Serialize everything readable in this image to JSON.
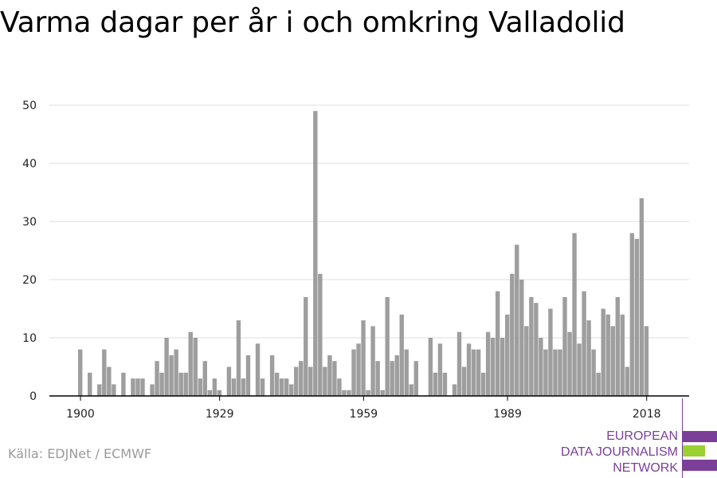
{
  "title": "Varma dagar per år i och omkring Valladolid",
  "source": "Källa: EDJNet / ECMWF",
  "logo": {
    "lines": [
      "EUROPEAN",
      "DATA JOURNALISM",
      "NETWORK"
    ],
    "colors": {
      "purple": "#7b3f98",
      "green": "#9bd033"
    }
  },
  "colors": {
    "bar": "#9e9e9e",
    "grid": "#dddddd",
    "axis": "#000000"
  },
  "chart_data": {
    "type": "bar",
    "title": "Varma dagar per år i och omkring Valladolid",
    "xlabel": "",
    "ylabel": "",
    "ylim": [
      0,
      50
    ],
    "yticks": [
      0,
      10,
      20,
      30,
      40,
      50
    ],
    "xticks": [
      1900,
      1929,
      1959,
      1989,
      2018
    ],
    "grid": true,
    "categories": [
      1900,
      1901,
      1902,
      1903,
      1904,
      1905,
      1906,
      1907,
      1908,
      1909,
      1910,
      1911,
      1912,
      1913,
      1914,
      1915,
      1916,
      1917,
      1918,
      1919,
      1920,
      1921,
      1922,
      1923,
      1924,
      1925,
      1926,
      1927,
      1928,
      1929,
      1930,
      1931,
      1932,
      1933,
      1934,
      1935,
      1936,
      1937,
      1938,
      1939,
      1940,
      1941,
      1942,
      1943,
      1944,
      1945,
      1946,
      1947,
      1948,
      1949,
      1950,
      1951,
      1952,
      1953,
      1954,
      1955,
      1956,
      1957,
      1958,
      1959,
      1960,
      1961,
      1962,
      1963,
      1964,
      1965,
      1966,
      1967,
      1968,
      1969,
      1970,
      1971,
      1972,
      1973,
      1974,
      1975,
      1976,
      1977,
      1978,
      1979,
      1980,
      1981,
      1982,
      1983,
      1984,
      1985,
      1986,
      1987,
      1988,
      1989,
      1990,
      1991,
      1992,
      1993,
      1994,
      1995,
      1996,
      1997,
      1998,
      1999,
      2000,
      2001,
      2002,
      2003,
      2004,
      2005,
      2006,
      2007,
      2008,
      2009,
      2010,
      2011,
      2012,
      2013,
      2014,
      2015,
      2016,
      2017,
      2018
    ],
    "values": [
      8,
      0,
      4,
      0,
      2,
      8,
      5,
      2,
      0,
      4,
      0,
      3,
      3,
      3,
      0,
      2,
      6,
      4,
      10,
      7,
      8,
      4,
      4,
      11,
      10,
      3,
      6,
      1,
      3,
      1,
      0,
      5,
      3,
      13,
      3,
      7,
      0,
      9,
      3,
      0,
      7,
      4,
      3,
      3,
      2,
      5,
      6,
      17,
      5,
      49,
      21,
      5,
      7,
      6,
      3,
      1,
      1,
      8,
      9,
      13,
      1,
      12,
      6,
      1,
      17,
      6,
      7,
      14,
      8,
      2,
      6,
      0,
      0,
      10,
      4,
      9,
      4,
      0,
      2,
      11,
      5,
      9,
      8,
      8,
      4,
      11,
      10,
      18,
      10,
      14,
      21,
      26,
      20,
      12,
      17,
      16,
      10,
      8,
      15,
      8,
      8,
      17,
      11,
      28,
      9,
      18,
      13,
      8,
      4,
      15,
      14,
      12,
      17,
      14,
      5,
      28,
      27,
      34,
      12
    ]
  }
}
